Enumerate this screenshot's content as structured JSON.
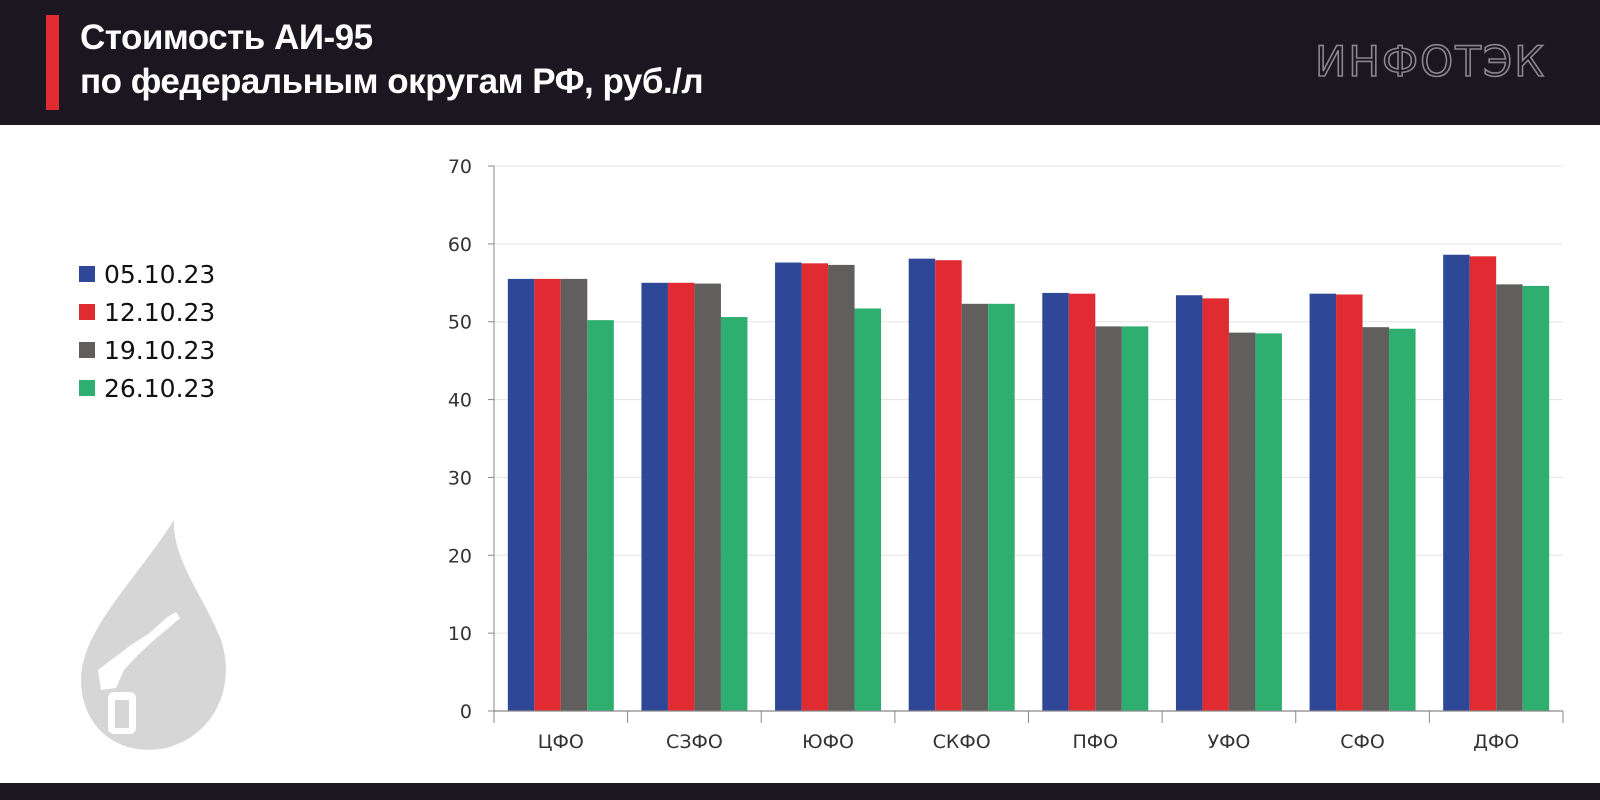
{
  "header": {
    "title_line1": "Стоимость АИ-95",
    "title_line2": "по федеральным округам РФ, руб./л",
    "logo_text": "ИНФОТЭК"
  },
  "colors": {
    "header_bg": "#1b1620",
    "accent": "#e02b33",
    "series": [
      "#2e4797",
      "#e02b33",
      "#615f5e",
      "#2eaf6f"
    ]
  },
  "icons": [
    "fuel-drop-icon",
    "fuel-nozzle-icon"
  ],
  "chart_data": {
    "type": "bar",
    "title": "Стоимость АИ-95 по федеральным округам РФ, руб./л",
    "xlabel": "",
    "ylabel": "",
    "ylim": [
      0,
      70
    ],
    "yticks": [
      0,
      10,
      20,
      30,
      40,
      50,
      60,
      70
    ],
    "grid": true,
    "legend_position": "left",
    "categories": [
      "ЦФО",
      "СЗФО",
      "ЮФО",
      "СКФО",
      "ПФО",
      "УФО",
      "СФО",
      "ДФО"
    ],
    "series": [
      {
        "name": "05.10.23",
        "color": "#2e4797",
        "values": [
          55.5,
          55.0,
          57.6,
          58.1,
          53.7,
          53.4,
          53.6,
          58.6
        ]
      },
      {
        "name": "12.10.23",
        "color": "#e02b33",
        "values": [
          55.5,
          55.0,
          57.5,
          57.9,
          53.6,
          53.0,
          53.5,
          58.4
        ]
      },
      {
        "name": "19.10.23",
        "color": "#615f5e",
        "values": [
          55.5,
          54.9,
          57.3,
          52.3,
          49.4,
          48.6,
          49.3,
          54.8
        ]
      },
      {
        "name": "26.10.23",
        "color": "#2eaf6f",
        "values": [
          50.2,
          50.6,
          51.7,
          52.3,
          49.4,
          48.5,
          49.1,
          54.6
        ]
      }
    ]
  }
}
